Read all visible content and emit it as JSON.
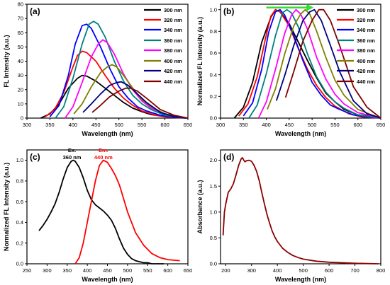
{
  "chart_data": [
    {
      "panel": "(a)",
      "type": "line",
      "xlabel": "Wavelength (nm)",
      "ylabel": "FL Intensity (a.u.)",
      "xlim": [
        300,
        650
      ],
      "ylim": [
        0,
        80
      ],
      "xticks": [
        300,
        350,
        400,
        450,
        500,
        550,
        600,
        650
      ],
      "yticks": [
        0,
        10,
        20,
        30,
        40,
        50,
        60,
        70,
        80
      ],
      "legend_position": "top-right",
      "series": [
        {
          "name": "300 nm",
          "color": "#000000",
          "x": [
            330,
            350,
            370,
            390,
            410,
            420,
            430,
            450,
            470,
            490,
            510,
            530,
            550,
            570,
            600,
            620,
            650
          ],
          "y": [
            0,
            3,
            10,
            21,
            28,
            30,
            29.5,
            26,
            21,
            16,
            11,
            7,
            4.5,
            2.5,
            1,
            0.5,
            0
          ]
        },
        {
          "name": "320 nm",
          "color": "#ff0000",
          "x": [
            340,
            360,
            380,
            400,
            410,
            420,
            430,
            450,
            470,
            490,
            510,
            530,
            550,
            580,
            610,
            650
          ],
          "y": [
            1,
            6,
            18,
            36,
            44,
            47,
            46,
            40,
            30,
            21,
            14,
            9,
            5,
            2,
            0.5,
            0
          ]
        },
        {
          "name": "340 nm",
          "color": "#0000ff",
          "x": [
            350,
            370,
            390,
            405,
            420,
            430,
            440,
            460,
            480,
            500,
            520,
            540,
            560,
            590,
            620,
            650
          ],
          "y": [
            1,
            9,
            30,
            52,
            65,
            66,
            63,
            50,
            35,
            22,
            14,
            8,
            5,
            2,
            0.5,
            0
          ]
        },
        {
          "name": "360 nm",
          "color": "#008080",
          "x": [
            362,
            380,
            400,
            420,
            435,
            445,
            455,
            470,
            490,
            510,
            530,
            550,
            570,
            600,
            630,
            650
          ],
          "y": [
            0,
            8,
            28,
            52,
            66,
            68,
            66,
            57,
            40,
            26,
            16,
            10,
            6,
            2,
            0.5,
            0
          ]
        },
        {
          "name": "380 nm",
          "color": "#ff00ff",
          "x": [
            383,
            400,
            420,
            440,
            455,
            465,
            475,
            490,
            510,
            530,
            550,
            570,
            600,
            630,
            650
          ],
          "y": [
            0,
            8,
            25,
            43,
            52,
            55,
            53,
            45,
            31,
            20,
            12,
            7,
            3,
            1,
            0
          ]
        },
        {
          "name": "400 nm",
          "color": "#808000",
          "x": [
            402,
            420,
            440,
            460,
            475,
            485,
            495,
            510,
            530,
            550,
            570,
            600,
            630,
            650
          ],
          "y": [
            3,
            10,
            22,
            32,
            36,
            37.5,
            36,
            30,
            21,
            13,
            8,
            3,
            1,
            0
          ]
        },
        {
          "name": "420 nm",
          "color": "#000080",
          "x": [
            422,
            440,
            460,
            480,
            495,
            505,
            520,
            540,
            560,
            590,
            620,
            650
          ],
          "y": [
            4,
            10,
            17,
            23,
            25,
            25.5,
            23,
            17,
            11,
            4,
            1,
            0
          ]
        },
        {
          "name": "440 nm",
          "color": "#800000",
          "x": [
            442,
            460,
            480,
            500,
            515,
            525,
            540,
            560,
            590,
            620,
            650
          ],
          "y": [
            4,
            9,
            15,
            19,
            21,
            21,
            19,
            14,
            6,
            2,
            0
          ]
        }
      ]
    },
    {
      "panel": "(b)",
      "type": "line",
      "xlabel": "Wavelength (nm)",
      "ylabel": "Normalized FL Intensity (a.u.)",
      "xlim": [
        300,
        650
      ],
      "ylim": [
        0.0,
        1.05
      ],
      "xticks": [
        300,
        350,
        400,
        450,
        500,
        550,
        600,
        650
      ],
      "yticks": [
        0.0,
        0.2,
        0.4,
        0.6,
        0.8,
        1.0
      ],
      "legend_position": "top-right",
      "arrow": {
        "from_x": 400,
        "to_x": 500,
        "y": 1.02,
        "color": "#33dd33"
      },
      "series": [
        {
          "name": "300 nm",
          "color": "#000000",
          "x": [
            330,
            350,
            370,
            390,
            410,
            420,
            430,
            450,
            470,
            490,
            510,
            530,
            550,
            570,
            600,
            620,
            650
          ],
          "y": [
            0,
            0.1,
            0.33,
            0.7,
            0.93,
            1.0,
            0.98,
            0.87,
            0.7,
            0.53,
            0.37,
            0.23,
            0.15,
            0.08,
            0.03,
            0.02,
            0
          ]
        },
        {
          "name": "320 nm",
          "color": "#ff0000",
          "x": [
            340,
            360,
            380,
            400,
            410,
            420,
            430,
            450,
            470,
            490,
            510,
            530,
            550,
            580,
            610,
            650
          ],
          "y": [
            0.02,
            0.13,
            0.38,
            0.77,
            0.94,
            1.0,
            0.98,
            0.85,
            0.64,
            0.45,
            0.3,
            0.19,
            0.11,
            0.04,
            0.01,
            0
          ]
        },
        {
          "name": "340 nm",
          "color": "#0000ff",
          "x": [
            350,
            370,
            390,
            405,
            420,
            430,
            440,
            460,
            480,
            500,
            520,
            540,
            560,
            590,
            620,
            650
          ],
          "y": [
            0.02,
            0.14,
            0.45,
            0.79,
            0.98,
            1.0,
            0.95,
            0.76,
            0.53,
            0.33,
            0.21,
            0.12,
            0.08,
            0.03,
            0.01,
            0
          ]
        },
        {
          "name": "360 nm",
          "color": "#008080",
          "x": [
            362,
            380,
            400,
            420,
            435,
            445,
            455,
            470,
            490,
            510,
            530,
            550,
            570,
            600,
            630,
            650
          ],
          "y": [
            0,
            0.12,
            0.41,
            0.76,
            0.97,
            1.0,
            0.97,
            0.84,
            0.59,
            0.38,
            0.24,
            0.15,
            0.09,
            0.03,
            0.01,
            0
          ]
        },
        {
          "name": "380 nm",
          "color": "#ff00ff",
          "x": [
            383,
            400,
            420,
            440,
            455,
            465,
            475,
            490,
            510,
            530,
            550,
            570,
            600,
            630,
            650
          ],
          "y": [
            0,
            0.15,
            0.45,
            0.78,
            0.95,
            1.0,
            0.96,
            0.82,
            0.56,
            0.36,
            0.22,
            0.13,
            0.05,
            0.02,
            0
          ]
        },
        {
          "name": "400 nm",
          "color": "#808000",
          "x": [
            402,
            420,
            440,
            460,
            475,
            485,
            495,
            510,
            530,
            550,
            570,
            600,
            630,
            650
          ],
          "y": [
            0.08,
            0.27,
            0.59,
            0.85,
            0.96,
            1.0,
            0.96,
            0.8,
            0.56,
            0.35,
            0.21,
            0.08,
            0.03,
            0
          ]
        },
        {
          "name": "420 nm",
          "color": "#000080",
          "x": [
            422,
            440,
            460,
            480,
            495,
            505,
            520,
            540,
            560,
            590,
            620,
            650
          ],
          "y": [
            0.16,
            0.39,
            0.67,
            0.9,
            0.98,
            1.0,
            0.9,
            0.67,
            0.43,
            0.16,
            0.04,
            0
          ]
        },
        {
          "name": "440 nm",
          "color": "#800000",
          "x": [
            442,
            460,
            480,
            500,
            515,
            525,
            540,
            560,
            590,
            620,
            650
          ],
          "y": [
            0.19,
            0.43,
            0.71,
            0.9,
            1.0,
            1.0,
            0.9,
            0.67,
            0.29,
            0.1,
            0
          ]
        }
      ]
    },
    {
      "panel": "(c)",
      "type": "line",
      "xlabel": "Wavelength (nm)",
      "ylabel": "Normalized FL Intensity (a.u.)",
      "xlim": [
        250,
        650
      ],
      "ylim": [
        0.0,
        1.1
      ],
      "xticks": [
        250,
        300,
        350,
        400,
        450,
        500,
        550,
        600,
        650
      ],
      "yticks": [
        0.0,
        0.2,
        0.4,
        0.6,
        0.8,
        1.0
      ],
      "annotations": [
        {
          "text": [
            "Ex.",
            "360 nm"
          ],
          "color": "#000000",
          "x": 362,
          "y": 1.08
        },
        {
          "text": [
            "Em.",
            "440 nm"
          ],
          "color": "#ff0000",
          "x": 440,
          "y": 1.08
        }
      ],
      "series": [
        {
          "name": "Ex.",
          "color": "#000000",
          "x": [
            280,
            290,
            300,
            310,
            320,
            330,
            340,
            350,
            360,
            365,
            370,
            380,
            390,
            400,
            410,
            420,
            430,
            440,
            450,
            460,
            470,
            480,
            490,
            500,
            510,
            520,
            530,
            540,
            550,
            560,
            570,
            580,
            590
          ],
          "y": [
            0.32,
            0.37,
            0.43,
            0.5,
            0.58,
            0.69,
            0.82,
            0.93,
            0.99,
            1.0,
            0.99,
            0.93,
            0.83,
            0.71,
            0.62,
            0.57,
            0.54,
            0.51,
            0.47,
            0.42,
            0.34,
            0.24,
            0.15,
            0.09,
            0.05,
            0.03,
            0.02,
            0.01,
            0.01,
            0,
            0,
            0,
            0
          ]
        },
        {
          "name": "Em.",
          "color": "#ff0000",
          "x": [
            370,
            380,
            390,
            400,
            410,
            420,
            430,
            440,
            450,
            460,
            470,
            480,
            490,
            500,
            520,
            540,
            560,
            580,
            600,
            630
          ],
          "y": [
            0,
            0.06,
            0.2,
            0.4,
            0.6,
            0.8,
            0.95,
            1.0,
            0.98,
            0.92,
            0.85,
            0.76,
            0.63,
            0.5,
            0.3,
            0.18,
            0.1,
            0.06,
            0.04,
            0.03
          ]
        }
      ]
    },
    {
      "panel": "(d)",
      "type": "line",
      "xlabel": "Wavelength (nm)",
      "ylabel": "Absorbance (a.u.)",
      "xlim": [
        180,
        800
      ],
      "ylim": [
        0.0,
        2.2
      ],
      "xticks": [
        200,
        300,
        400,
        500,
        600,
        700,
        800
      ],
      "yticks": [
        0.0,
        0.5,
        1.0,
        1.5,
        2.0
      ],
      "series": [
        {
          "name": "Absorbance",
          "color": "#8b0000",
          "x": [
            190,
            195,
            200,
            210,
            220,
            230,
            240,
            250,
            260,
            265,
            270,
            275,
            280,
            290,
            300,
            310,
            320,
            330,
            340,
            350,
            360,
            370,
            380,
            390,
            400,
            420,
            440,
            460,
            480,
            500,
            550,
            600,
            700,
            790
          ],
          "y": [
            0.55,
            1.0,
            1.15,
            1.38,
            1.45,
            1.55,
            1.72,
            1.9,
            2.03,
            2.05,
            2.0,
            1.97,
            1.99,
            2.0,
            1.98,
            1.9,
            1.78,
            1.6,
            1.37,
            1.15,
            0.95,
            0.78,
            0.63,
            0.52,
            0.43,
            0.3,
            0.22,
            0.16,
            0.12,
            0.09,
            0.05,
            0.03,
            0.01,
            0
          ]
        }
      ]
    }
  ]
}
